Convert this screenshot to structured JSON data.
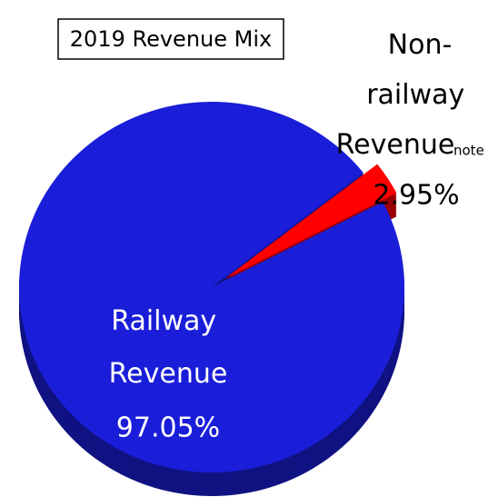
{
  "chart_data": {
    "type": "pie",
    "title": "2019 Revenue Mix",
    "categories": [
      "Railway Revenue",
      "Non-railway Revenue"
    ],
    "values": [
      97.05,
      2.95
    ],
    "value_labels": [
      "97.05%",
      "2.95%"
    ],
    "colors": [
      "#1a1ed8",
      "#ff0000"
    ],
    "annotation": "note"
  }
}
